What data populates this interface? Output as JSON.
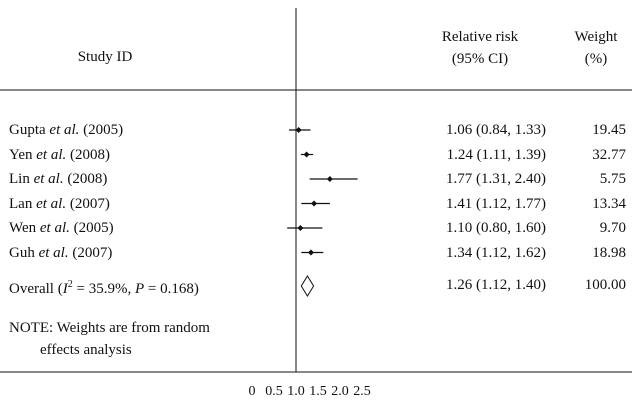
{
  "chart_data": {
    "type": "forest",
    "header": {
      "study": "Study ID",
      "rr_line1": "Relative risk",
      "rr_line2": "(95% CI)",
      "weight_line1": "Weight",
      "weight_line2": "(%)"
    },
    "studies": [
      {
        "name": "Gupta",
        "etal": "et al.",
        "year": "(2005)",
        "rr": 1.06,
        "lo": 0.84,
        "hi": 1.33,
        "ci_text": "1.06 (0.84, 1.33)",
        "weight": "19.45"
      },
      {
        "name": "Yen",
        "etal": "et al.",
        "year": "(2008)",
        "rr": 1.24,
        "lo": 1.11,
        "hi": 1.39,
        "ci_text": "1.24 (1.11, 1.39)",
        "weight": "32.77"
      },
      {
        "name": "Lin",
        "etal": "et al.",
        "year": "(2008)",
        "rr": 1.77,
        "lo": 1.31,
        "hi": 2.4,
        "ci_text": "1.77 (1.31, 2.40)",
        "weight": "5.75"
      },
      {
        "name": "Lan",
        "etal": "et al.",
        "year": "(2007)",
        "rr": 1.41,
        "lo": 1.12,
        "hi": 1.77,
        "ci_text": "1.41 (1.12, 1.77)",
        "weight": "13.34"
      },
      {
        "name": "Wen",
        "etal": "et al.",
        "year": "(2005)",
        "rr": 1.1,
        "lo": 0.8,
        "hi": 1.6,
        "ci_text": "1.10 (0.80, 1.60)",
        "weight": "9.70"
      },
      {
        "name": "Guh",
        "etal": "et al.",
        "year": "(2007)",
        "rr": 1.34,
        "lo": 1.12,
        "hi": 1.62,
        "ci_text": "1.34 (1.12, 1.62)",
        "weight": "18.98"
      }
    ],
    "overall": {
      "label_prefix": "Overall (",
      "i2_symbol": "I",
      "i2_sup": "2",
      "label_rest": " = 35.9%, ",
      "p_symbol": "P",
      "p_rest": " = 0.168)",
      "rr": 1.26,
      "lo": 1.12,
      "hi": 1.4,
      "ci_text": "1.26 (1.12, 1.40)",
      "weight": "100.00"
    },
    "note_line1": "NOTE: Weights are from random",
    "note_line2": "effects analysis",
    "null_value": 1.0,
    "x_range": [
      0,
      2.5
    ],
    "x_ticks": [
      "0",
      "0.5",
      "1.0",
      "1.5",
      "2.0",
      "2.5"
    ],
    "x_tick_values": [
      0,
      0.5,
      1.0,
      1.5,
      2.0,
      2.5
    ],
    "colors": {
      "ink": "#111111"
    }
  }
}
